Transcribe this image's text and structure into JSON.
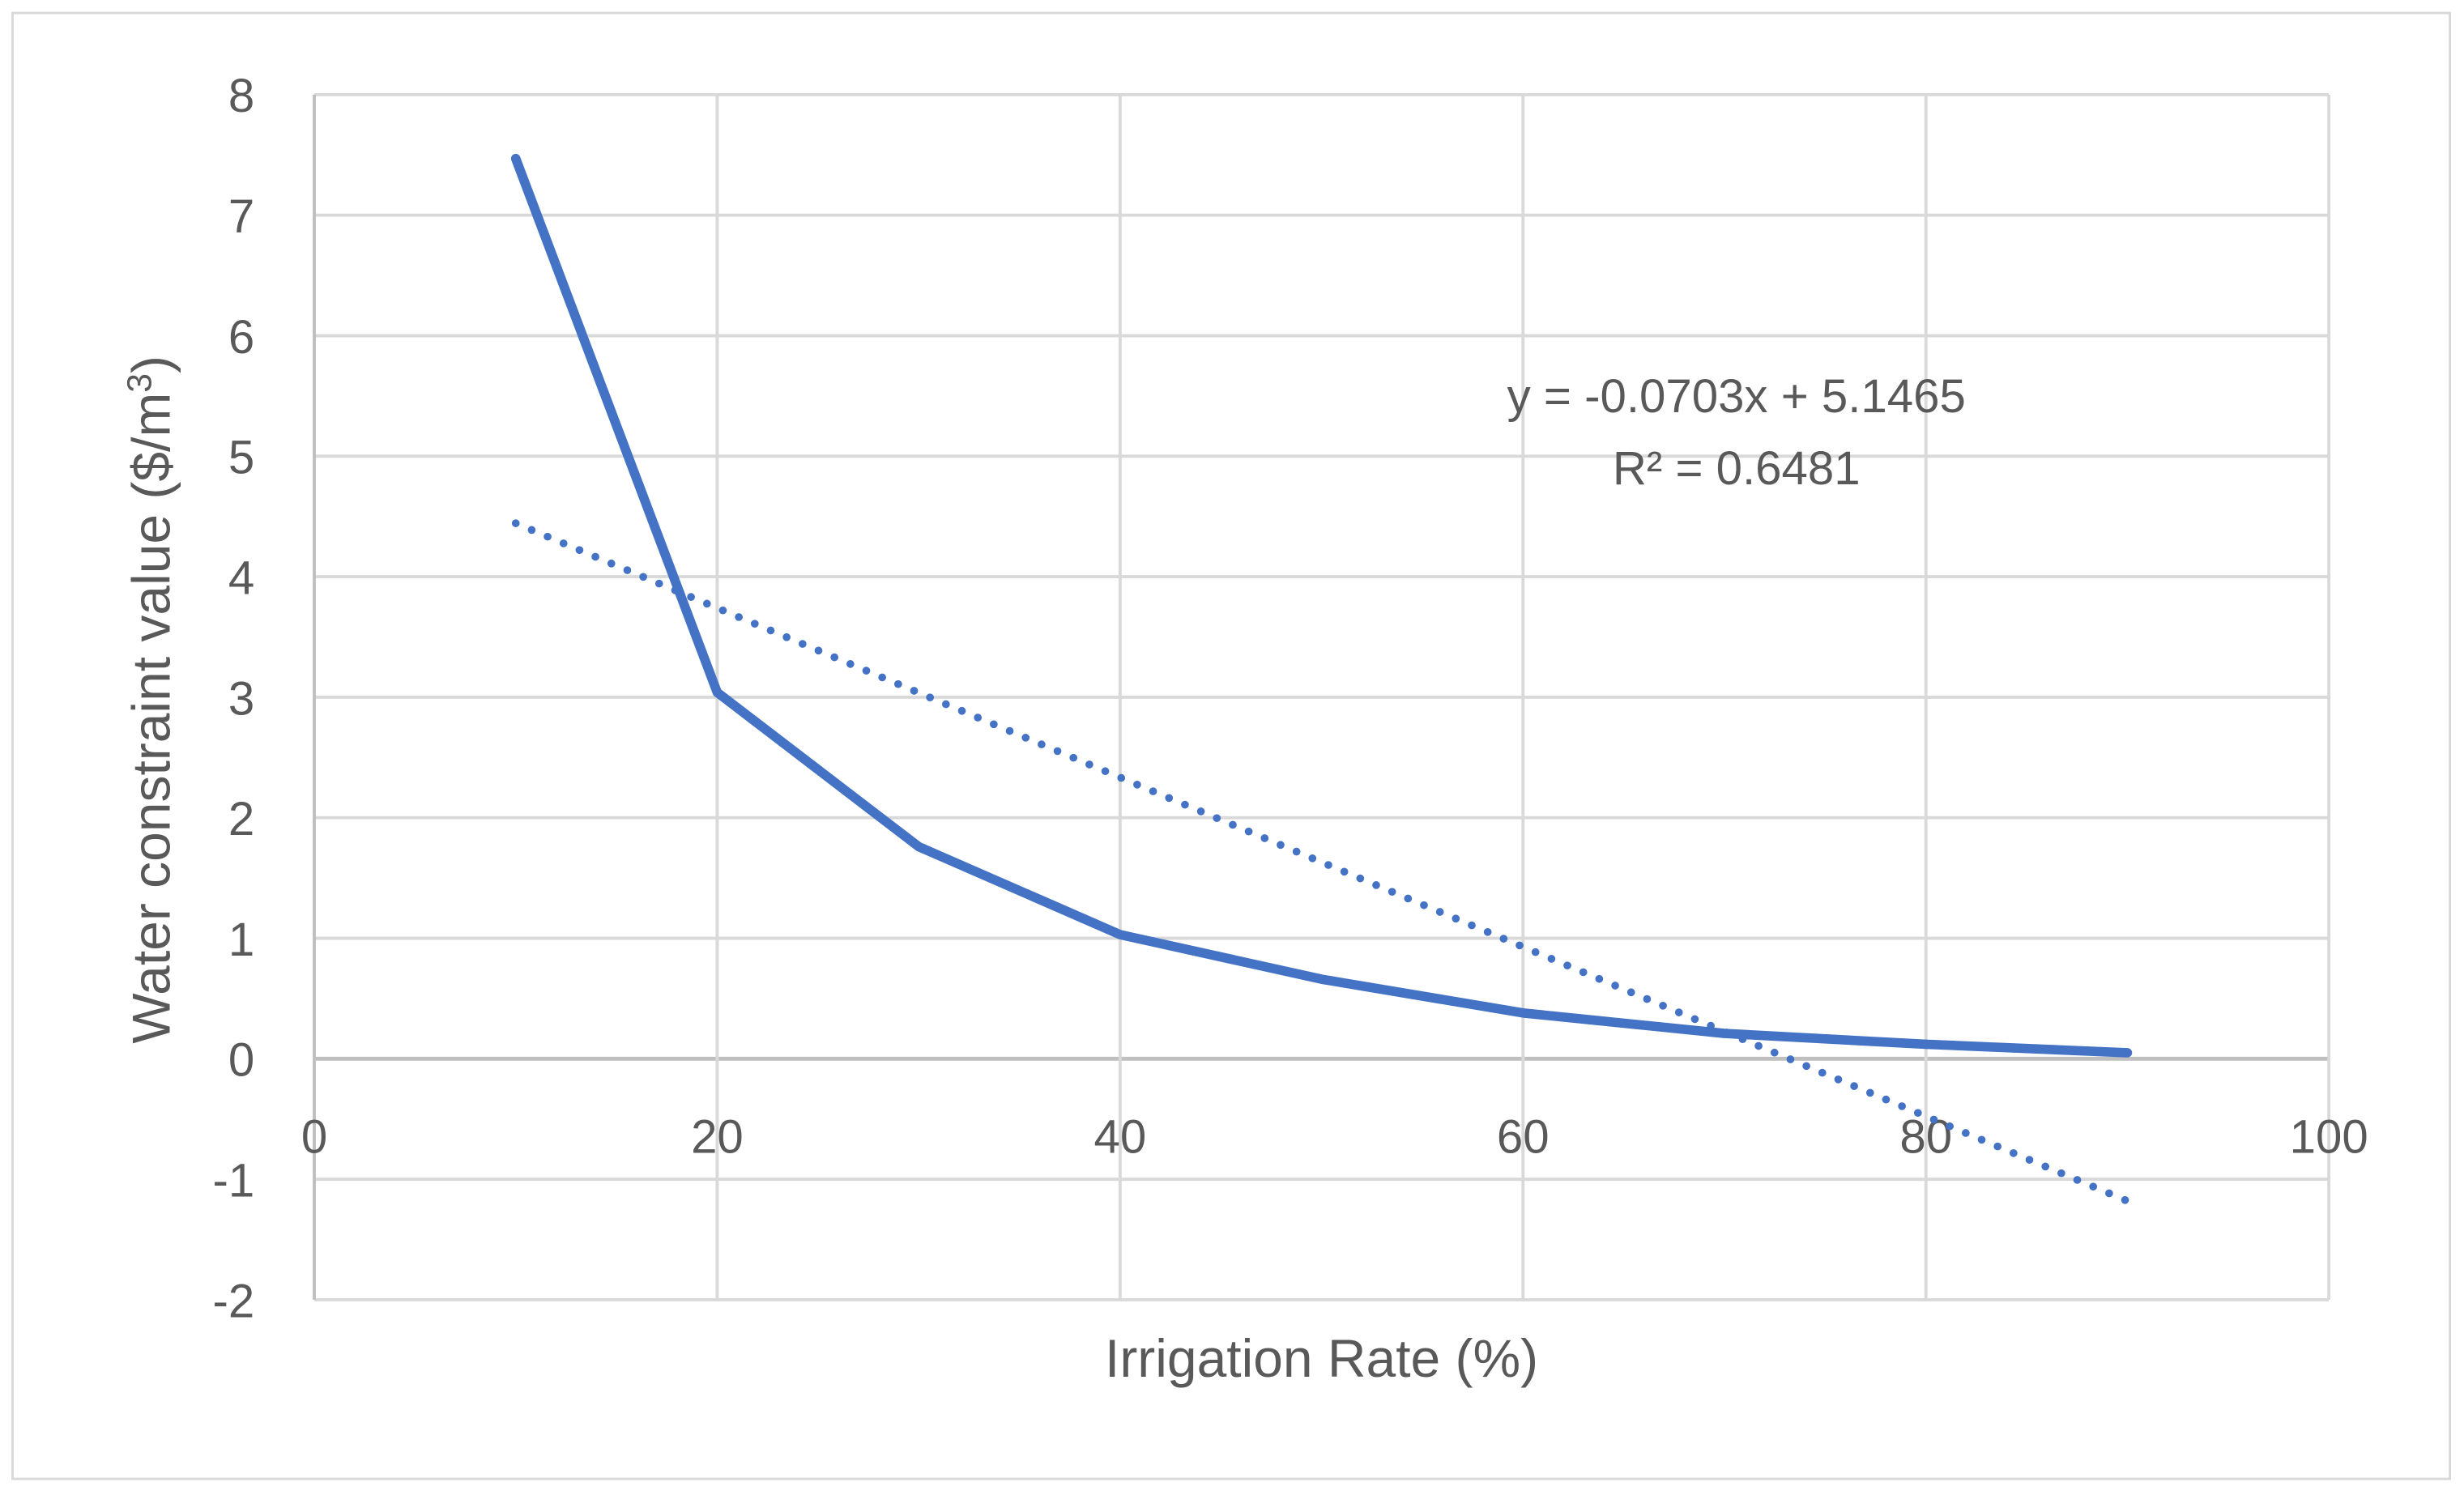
{
  "chart_data": {
    "type": "line",
    "title": "",
    "xlabel": "Irrigation Rate (%)",
    "ylabel_main": "Water constraint value ($/m",
    "ylabel_sup": "3",
    "ylabel_end": ")",
    "xlim": [
      0,
      100
    ],
    "ylim": [
      -2,
      8
    ],
    "x_ticks": [
      0,
      20,
      40,
      60,
      80,
      100
    ],
    "y_ticks": [
      -2,
      -1,
      0,
      1,
      2,
      3,
      4,
      5,
      6,
      7,
      8
    ],
    "grid": true,
    "series": [
      {
        "name": "Water constraint value",
        "x": [
          10,
          20,
          30,
          40,
          50,
          60,
          70,
          80,
          90
        ],
        "y": [
          7.47,
          3.04,
          1.76,
          1.03,
          0.66,
          0.38,
          0.21,
          0.12,
          0.05
        ],
        "color": "#4472C4"
      }
    ],
    "trendline": {
      "type": "linear",
      "slope": -0.0703,
      "intercept": 5.1465,
      "x_range": [
        10,
        90
      ],
      "equation": "y = -0.0703x + 5.1465",
      "r_squared": "R² = 0.6481",
      "color": "#4472C4"
    }
  }
}
